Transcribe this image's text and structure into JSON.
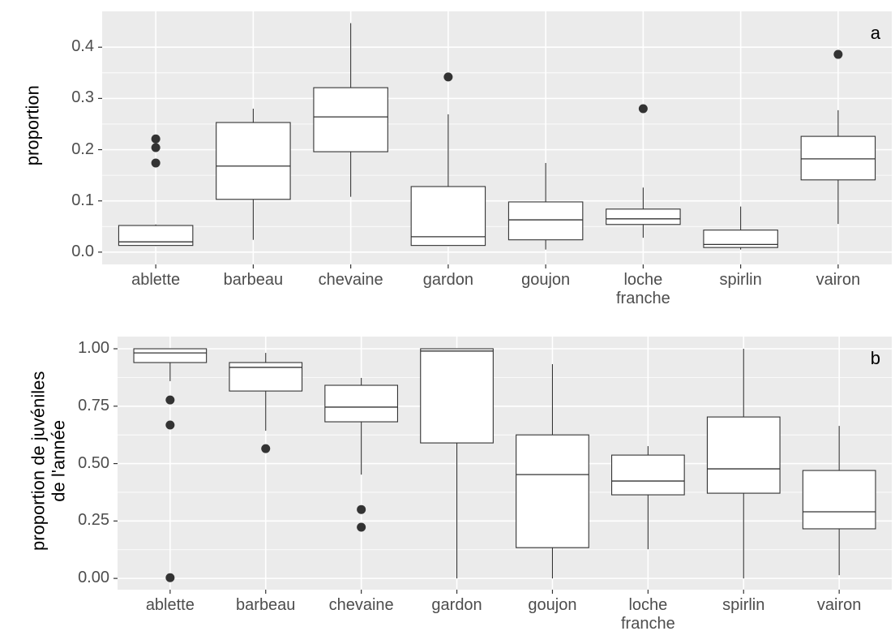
{
  "chart_data": [
    {
      "type": "box",
      "panel_label": "a",
      "ylabel": "proportion",
      "categories": [
        "ablette",
        "barbeau",
        "chevaine",
        "gardon",
        "goujon",
        "loche\nfranche",
        "spirlin",
        "vairon"
      ],
      "boxes": [
        {
          "min": 0.012,
          "q1": 0.013,
          "median": 0.02,
          "q3": 0.052,
          "max": 0.054,
          "outliers": [
            0.221,
            0.204,
            0.174
          ]
        },
        {
          "min": 0.024,
          "q1": 0.103,
          "median": 0.168,
          "q3": 0.253,
          "max": 0.28,
          "outliers": []
        },
        {
          "min": 0.108,
          "q1": 0.196,
          "median": 0.264,
          "q3": 0.321,
          "max": 0.447,
          "outliers": []
        },
        {
          "min": 0.012,
          "q1": 0.013,
          "median": 0.03,
          "q3": 0.128,
          "max": 0.269,
          "outliers": [
            0.342
          ]
        },
        {
          "min": 0.005,
          "q1": 0.024,
          "median": 0.063,
          "q3": 0.098,
          "max": 0.174,
          "outliers": []
        },
        {
          "min": 0.028,
          "q1": 0.054,
          "median": 0.065,
          "q3": 0.084,
          "max": 0.126,
          "outliers": [
            0.28
          ]
        },
        {
          "min": 0.005,
          "q1": 0.009,
          "median": 0.015,
          "q3": 0.043,
          "max": 0.089,
          "outliers": []
        },
        {
          "min": 0.055,
          "q1": 0.141,
          "median": 0.182,
          "q3": 0.226,
          "max": 0.277,
          "outliers": [
            0.386
          ]
        }
      ],
      "ylim": [
        -0.024,
        0.47
      ],
      "yticks": [
        {
          "value": 0,
          "label": "0.0"
        },
        0.1,
        0.2,
        0.3,
        0.4
      ],
      "box_fill": "#ffffff",
      "box_stroke": "#333333",
      "outlier_color": "#333333",
      "panel_color": "#ebebeb",
      "grid": true
    },
    {
      "type": "box",
      "panel_label": "b",
      "ylabel": "proportion de juvéniles\nde l'année",
      "categories": [
        "ablette",
        "barbeau",
        "chevaine",
        "gardon",
        "goujon",
        "loche\nfranche",
        "spirlin",
        "vairon"
      ],
      "boxes": [
        {
          "min": 0.859,
          "q1": 0.94,
          "median": 0.982,
          "q3": 1.0,
          "max": 1.0,
          "outliers": [
            0.777,
            0.668,
            0.003
          ]
        },
        {
          "min": 0.643,
          "q1": 0.816,
          "median": 0.919,
          "q3": 0.94,
          "max": 0.982,
          "outliers": [
            0.565
          ]
        },
        {
          "min": 0.452,
          "q1": 0.682,
          "median": 0.746,
          "q3": 0.841,
          "max": 0.873,
          "outliers": [
            0.3,
            0.223
          ]
        },
        {
          "min": 0,
          "q1": 0.59,
          "median": 0.99,
          "q3": 1.0,
          "max": 1.0,
          "outliers": []
        },
        {
          "min": 0,
          "q1": 0.134,
          "median": 0.452,
          "q3": 0.625,
          "max": 0.933,
          "outliers": []
        },
        {
          "min": 0.127,
          "q1": 0.364,
          "median": 0.424,
          "q3": 0.537,
          "max": 0.576,
          "outliers": []
        },
        {
          "min": 0,
          "q1": 0.371,
          "median": 0.477,
          "q3": 0.703,
          "max": 1.0,
          "outliers": []
        },
        {
          "min": 0.014,
          "q1": 0.216,
          "median": 0.29,
          "q3": 0.47,
          "max": 0.664,
          "outliers": []
        }
      ],
      "ylim": [
        -0.049,
        1.053
      ],
      "yticks": [
        {
          "value": 0,
          "label": "0.00"
        },
        {
          "value": 0.25,
          "label": "0.25"
        },
        {
          "value": 0.5,
          "label": "0.50"
        },
        {
          "value": 0.75,
          "label": "0.75"
        },
        {
          "value": 1,
          "label": "1.00"
        }
      ],
      "box_fill": "#ffffff",
      "box_stroke": "#333333",
      "outlier_color": "#333333",
      "panel_color": "#ebebeb",
      "grid": true
    }
  ]
}
